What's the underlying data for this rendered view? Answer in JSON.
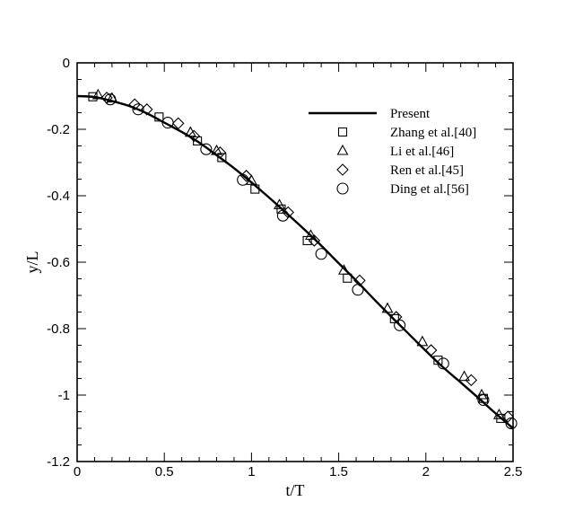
{
  "chart_data": {
    "type": "scatter",
    "xlabel": "t/T",
    "ylabel": "y/L",
    "xlim": [
      0,
      2.5
    ],
    "ylim": [
      -1.2,
      0
    ],
    "x_ticks": [
      0,
      0.5,
      1,
      1.5,
      2,
      2.5
    ],
    "x_tick_labels": [
      "0",
      "0.5",
      "1",
      "1.5",
      "2",
      "2.5"
    ],
    "y_ticks": [
      0,
      -0.2,
      -0.4,
      -0.6,
      -0.8,
      -1,
      -1.2
    ],
    "y_tick_labels": [
      "0",
      "-0.2",
      "-0.4",
      "-0.6",
      "-0.8",
      "-1",
      "-1.2"
    ],
    "grid": false,
    "legend_position": "top-right",
    "series": [
      {
        "name": "Present",
        "style": "line",
        "x": [
          0,
          0.1,
          0.2,
          0.3,
          0.4,
          0.5,
          0.6,
          0.7,
          0.8,
          0.9,
          1.0,
          1.1,
          1.2,
          1.3,
          1.4,
          1.5,
          1.6,
          1.7,
          1.8,
          1.9,
          2.0,
          2.1,
          2.2,
          2.3,
          2.4,
          2.5
        ],
        "y": [
          -0.1,
          -0.103,
          -0.115,
          -0.13,
          -0.152,
          -0.18,
          -0.208,
          -0.24,
          -0.278,
          -0.317,
          -0.36,
          -0.405,
          -0.452,
          -0.5,
          -0.55,
          -0.603,
          -0.655,
          -0.71,
          -0.763,
          -0.815,
          -0.867,
          -0.917,
          -0.962,
          -1.008,
          -1.055,
          -1.1
        ]
      },
      {
        "name": "Zhang et al.[40]",
        "style": "marker",
        "marker": "square",
        "x": [
          0.09,
          0.47,
          0.69,
          0.83,
          1.02,
          1.17,
          1.32,
          1.55,
          1.82,
          2.07,
          2.33,
          2.43
        ],
        "y": [
          -0.102,
          -0.163,
          -0.235,
          -0.285,
          -0.38,
          -0.44,
          -0.535,
          -0.648,
          -0.77,
          -0.895,
          -1.01,
          -1.07
        ]
      },
      {
        "name": "Li et al.[46]",
        "style": "marker",
        "marker": "triangle",
        "x": [
          0.12,
          0.2,
          0.65,
          0.8,
          1.0,
          1.16,
          1.34,
          1.53,
          1.78,
          1.98,
          2.22,
          2.32,
          2.42
        ],
        "y": [
          -0.097,
          -0.107,
          -0.21,
          -0.265,
          -0.355,
          -0.428,
          -0.52,
          -0.625,
          -0.74,
          -0.84,
          -0.945,
          -1.0,
          -1.06
        ]
      },
      {
        "name": "Ren et al.[45]",
        "style": "marker",
        "marker": "diamond",
        "x": [
          0.17,
          0.33,
          0.4,
          0.58,
          0.67,
          0.82,
          0.97,
          1.21,
          1.36,
          1.62,
          1.83,
          2.03,
          2.26,
          2.47
        ],
        "y": [
          -0.105,
          -0.125,
          -0.14,
          -0.182,
          -0.22,
          -0.27,
          -0.34,
          -0.45,
          -0.535,
          -0.655,
          -0.765,
          -0.865,
          -0.955,
          -1.065
        ]
      },
      {
        "name": "Ding et al.[56]",
        "style": "marker",
        "marker": "circle",
        "x": [
          0.19,
          0.35,
          0.52,
          0.74,
          0.95,
          1.18,
          1.4,
          1.61,
          1.85,
          2.1,
          2.33,
          2.49
        ],
        "y": [
          -0.11,
          -0.14,
          -0.18,
          -0.26,
          -0.352,
          -0.46,
          -0.575,
          -0.683,
          -0.79,
          -0.905,
          -1.015,
          -1.085
        ]
      }
    ]
  }
}
